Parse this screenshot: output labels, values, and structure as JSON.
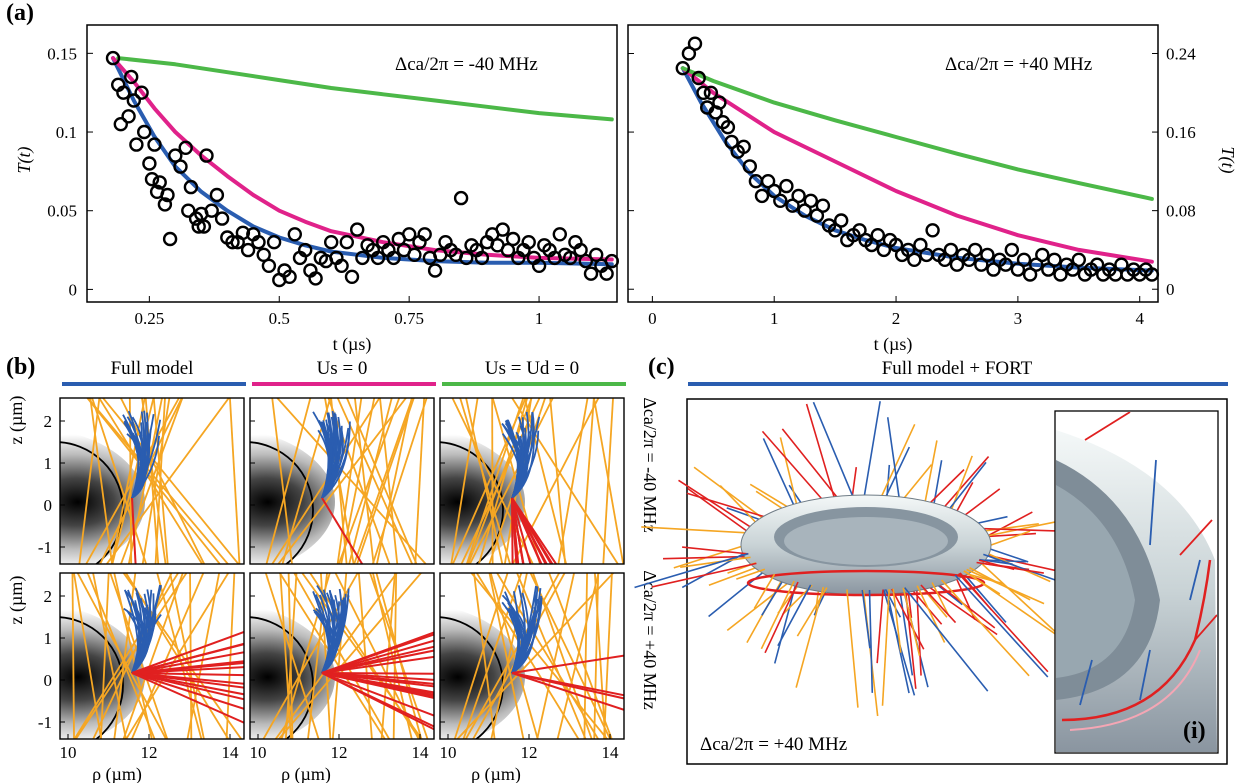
{
  "panel_labels": {
    "a": "(a)",
    "b": "(b)",
    "c": "(c)",
    "c_inset": "(i)"
  },
  "chart_data": [
    {
      "type": "scatter",
      "title": "",
      "annotation": "Δca/2π = -40 MHz",
      "xlabel": "t (µs)",
      "ylabel": "T(t)",
      "xlim": [
        0.13,
        1.15
      ],
      "ylim": [
        -0.008,
        0.168
      ],
      "xticks": [
        "0.25",
        "0.5",
        "0.75",
        "1"
      ],
      "yticks": [
        "0",
        "0.05",
        "0.1",
        "0.15"
      ],
      "markers": "open circles",
      "colors": {
        "data": "#000000",
        "blue": "#2a5db0",
        "magenta": "#e0228a",
        "green": "#4cb848"
      },
      "scatter": [
        [
          0.18,
          0.147
        ],
        [
          0.19,
          0.13
        ],
        [
          0.195,
          0.105
        ],
        [
          0.2,
          0.125
        ],
        [
          0.21,
          0.11
        ],
        [
          0.215,
          0.135
        ],
        [
          0.22,
          0.12
        ],
        [
          0.225,
          0.092
        ],
        [
          0.235,
          0.125
        ],
        [
          0.24,
          0.1
        ],
        [
          0.25,
          0.08
        ],
        [
          0.255,
          0.07
        ],
        [
          0.26,
          0.092
        ],
        [
          0.265,
          0.062
        ],
        [
          0.27,
          0.068
        ],
        [
          0.28,
          0.054
        ],
        [
          0.285,
          0.06
        ],
        [
          0.29,
          0.032
        ],
        [
          0.3,
          0.085
        ],
        [
          0.31,
          0.078
        ],
        [
          0.32,
          0.09
        ],
        [
          0.325,
          0.05
        ],
        [
          0.33,
          0.065
        ],
        [
          0.34,
          0.045
        ],
        [
          0.345,
          0.04
        ],
        [
          0.35,
          0.048
        ],
        [
          0.355,
          0.04
        ],
        [
          0.36,
          0.085
        ],
        [
          0.37,
          0.05
        ],
        [
          0.38,
          0.06
        ],
        [
          0.39,
          0.045
        ],
        [
          0.4,
          0.033
        ],
        [
          0.41,
          0.03
        ],
        [
          0.42,
          0.03
        ],
        [
          0.43,
          0.036
        ],
        [
          0.44,
          0.025
        ],
        [
          0.45,
          0.035
        ],
        [
          0.46,
          0.03
        ],
        [
          0.47,
          0.022
        ],
        [
          0.48,
          0.015
        ],
        [
          0.49,
          0.03
        ],
        [
          0.5,
          0.006
        ],
        [
          0.51,
          0.012
        ],
        [
          0.52,
          0.008
        ],
        [
          0.53,
          0.035
        ],
        [
          0.54,
          0.02
        ],
        [
          0.55,
          0.025
        ],
        [
          0.56,
          0.012
        ],
        [
          0.57,
          0.007
        ],
        [
          0.58,
          0.02
        ],
        [
          0.59,
          0.018
        ],
        [
          0.6,
          0.03
        ],
        [
          0.61,
          0.02
        ],
        [
          0.62,
          0.015
        ],
        [
          0.63,
          0.03
        ],
        [
          0.64,
          0.008
        ],
        [
          0.65,
          0.038
        ],
        [
          0.66,
          0.02
        ],
        [
          0.67,
          0.028
        ],
        [
          0.68,
          0.025
        ],
        [
          0.69,
          0.02
        ],
        [
          0.7,
          0.03
        ],
        [
          0.71,
          0.025
        ],
        [
          0.72,
          0.02
        ],
        [
          0.73,
          0.032
        ],
        [
          0.74,
          0.025
        ],
        [
          0.75,
          0.035
        ],
        [
          0.76,
          0.022
        ],
        [
          0.77,
          0.03
        ],
        [
          0.78,
          0.035
        ],
        [
          0.79,
          0.02
        ],
        [
          0.8,
          0.012
        ],
        [
          0.81,
          0.022
        ],
        [
          0.82,
          0.03
        ],
        [
          0.83,
          0.025
        ],
        [
          0.84,
          0.022
        ],
        [
          0.85,
          0.058
        ],
        [
          0.86,
          0.02
        ],
        [
          0.87,
          0.028
        ],
        [
          0.88,
          0.025
        ],
        [
          0.89,
          0.02
        ],
        [
          0.9,
          0.03
        ],
        [
          0.91,
          0.035
        ],
        [
          0.92,
          0.028
        ],
        [
          0.93,
          0.038
        ],
        [
          0.94,
          0.025
        ],
        [
          0.95,
          0.032
        ],
        [
          0.96,
          0.02
        ],
        [
          0.97,
          0.025
        ],
        [
          0.98,
          0.03
        ],
        [
          0.99,
          0.02
        ],
        [
          1.0,
          0.015
        ],
        [
          1.01,
          0.028
        ],
        [
          1.02,
          0.025
        ],
        [
          1.03,
          0.02
        ],
        [
          1.04,
          0.035
        ],
        [
          1.05,
          0.022
        ],
        [
          1.06,
          0.02
        ],
        [
          1.07,
          0.03
        ],
        [
          1.08,
          0.025
        ],
        [
          1.09,
          0.018
        ],
        [
          1.1,
          0.01
        ],
        [
          1.11,
          0.022
        ],
        [
          1.12,
          0.015
        ],
        [
          1.13,
          0.01
        ],
        [
          1.14,
          0.018
        ]
      ],
      "series": [
        {
          "color": "#2a5db0",
          "points": [
            [
              0.18,
              0.147
            ],
            [
              0.22,
              0.12
            ],
            [
              0.26,
              0.097
            ],
            [
              0.3,
              0.078
            ],
            [
              0.35,
              0.062
            ],
            [
              0.4,
              0.05
            ],
            [
              0.45,
              0.04
            ],
            [
              0.5,
              0.033
            ],
            [
              0.55,
              0.028
            ],
            [
              0.6,
              0.024
            ],
            [
              0.7,
              0.02
            ],
            [
              0.8,
              0.018
            ],
            [
              0.9,
              0.017
            ],
            [
              1.0,
              0.017
            ],
            [
              1.14,
              0.016
            ]
          ]
        },
        {
          "color": "#e0228a",
          "points": [
            [
              0.18,
              0.147
            ],
            [
              0.22,
              0.132
            ],
            [
              0.26,
              0.115
            ],
            [
              0.3,
              0.1
            ],
            [
              0.35,
              0.085
            ],
            [
              0.4,
              0.072
            ],
            [
              0.45,
              0.06
            ],
            [
              0.5,
              0.05
            ],
            [
              0.55,
              0.043
            ],
            [
              0.6,
              0.037
            ],
            [
              0.7,
              0.03
            ],
            [
              0.8,
              0.025
            ],
            [
              0.9,
              0.022
            ],
            [
              1.0,
              0.02
            ],
            [
              1.14,
              0.019
            ]
          ]
        },
        {
          "color": "#4cb848",
          "points": [
            [
              0.19,
              0.147
            ],
            [
              0.3,
              0.143
            ],
            [
              0.4,
              0.138
            ],
            [
              0.5,
              0.133
            ],
            [
              0.6,
              0.128
            ],
            [
              0.7,
              0.124
            ],
            [
              0.8,
              0.12
            ],
            [
              0.9,
              0.116
            ],
            [
              1.0,
              0.112
            ],
            [
              1.14,
              0.108
            ]
          ]
        }
      ]
    },
    {
      "type": "scatter",
      "title": "",
      "annotation": "Δca/2π = +40 MHz",
      "xlabel": "t (µs)",
      "ylabel": "T(t)",
      "xlim": [
        -0.2,
        4.15
      ],
      "ylim": [
        -0.013,
        0.269
      ],
      "xticks": [
        "0",
        "1",
        "2",
        "3",
        "4"
      ],
      "yticks": [
        "0",
        "0.08",
        "0.16",
        "0.24"
      ],
      "markers": "open circles",
      "colors": {
        "data": "#000000",
        "blue": "#2a5db0",
        "magenta": "#e0228a",
        "green": "#4cb848"
      },
      "scatter": [
        [
          0.25,
          0.225
        ],
        [
          0.3,
          0.24
        ],
        [
          0.35,
          0.25
        ],
        [
          0.38,
          0.215
        ],
        [
          0.42,
          0.2
        ],
        [
          0.45,
          0.185
        ],
        [
          0.48,
          0.2
        ],
        [
          0.52,
          0.18
        ],
        [
          0.55,
          0.19
        ],
        [
          0.58,
          0.17
        ],
        [
          0.62,
          0.165
        ],
        [
          0.65,
          0.15
        ],
        [
          0.7,
          0.14
        ],
        [
          0.75,
          0.145
        ],
        [
          0.8,
          0.125
        ],
        [
          0.85,
          0.11
        ],
        [
          0.9,
          0.095
        ],
        [
          0.95,
          0.11
        ],
        [
          1.0,
          0.1
        ],
        [
          1.05,
          0.09
        ],
        [
          1.1,
          0.105
        ],
        [
          1.15,
          0.085
        ],
        [
          1.2,
          0.095
        ],
        [
          1.25,
          0.08
        ],
        [
          1.3,
          0.09
        ],
        [
          1.35,
          0.075
        ],
        [
          1.4,
          0.085
        ],
        [
          1.45,
          0.065
        ],
        [
          1.5,
          0.06
        ],
        [
          1.55,
          0.07
        ],
        [
          1.6,
          0.05
        ],
        [
          1.65,
          0.055
        ],
        [
          1.7,
          0.06
        ],
        [
          1.75,
          0.05
        ],
        [
          1.8,
          0.045
        ],
        [
          1.85,
          0.055
        ],
        [
          1.9,
          0.04
        ],
        [
          1.95,
          0.05
        ],
        [
          2.0,
          0.045
        ],
        [
          2.05,
          0.035
        ],
        [
          2.1,
          0.04
        ],
        [
          2.15,
          0.03
        ],
        [
          2.2,
          0.045
        ],
        [
          2.25,
          0.035
        ],
        [
          2.3,
          0.06
        ],
        [
          2.35,
          0.035
        ],
        [
          2.4,
          0.03
        ],
        [
          2.45,
          0.04
        ],
        [
          2.5,
          0.025
        ],
        [
          2.55,
          0.035
        ],
        [
          2.6,
          0.03
        ],
        [
          2.65,
          0.04
        ],
        [
          2.7,
          0.025
        ],
        [
          2.75,
          0.035
        ],
        [
          2.8,
          0.02
        ],
        [
          2.85,
          0.03
        ],
        [
          2.9,
          0.025
        ],
        [
          2.95,
          0.04
        ],
        [
          3.0,
          0.02
        ],
        [
          3.05,
          0.03
        ],
        [
          3.1,
          0.015
        ],
        [
          3.15,
          0.025
        ],
        [
          3.2,
          0.035
        ],
        [
          3.25,
          0.02
        ],
        [
          3.3,
          0.03
        ],
        [
          3.35,
          0.015
        ],
        [
          3.4,
          0.025
        ],
        [
          3.45,
          0.02
        ],
        [
          3.5,
          0.03
        ],
        [
          3.55,
          0.015
        ],
        [
          3.6,
          0.02
        ],
        [
          3.65,
          0.025
        ],
        [
          3.7,
          0.015
        ],
        [
          3.75,
          0.02
        ],
        [
          3.8,
          0.015
        ],
        [
          3.85,
          0.025
        ],
        [
          3.9,
          0.015
        ],
        [
          3.95,
          0.02
        ],
        [
          4.0,
          0.015
        ],
        [
          4.05,
          0.02
        ],
        [
          4.1,
          0.015
        ]
      ],
      "series": [
        {
          "color": "#2a5db0",
          "points": [
            [
              0.25,
              0.225
            ],
            [
              0.4,
              0.19
            ],
            [
              0.6,
              0.15
            ],
            [
              0.8,
              0.118
            ],
            [
              1.0,
              0.095
            ],
            [
              1.25,
              0.075
            ],
            [
              1.5,
              0.06
            ],
            [
              1.75,
              0.05
            ],
            [
              2.0,
              0.042
            ],
            [
              2.5,
              0.032
            ],
            [
              3.0,
              0.026
            ],
            [
              3.5,
              0.022
            ],
            [
              4.1,
              0.019
            ]
          ]
        },
        {
          "color": "#e0228a",
          "points": [
            [
              0.25,
              0.225
            ],
            [
              0.5,
              0.2
            ],
            [
              0.75,
              0.18
            ],
            [
              1.0,
              0.16
            ],
            [
              1.5,
              0.13
            ],
            [
              2.0,
              0.1
            ],
            [
              2.5,
              0.075
            ],
            [
              3.0,
              0.055
            ],
            [
              3.5,
              0.04
            ],
            [
              4.1,
              0.028
            ]
          ]
        },
        {
          "color": "#4cb848",
          "points": [
            [
              0.25,
              0.225
            ],
            [
              0.5,
              0.212
            ],
            [
              1.0,
              0.19
            ],
            [
              1.5,
              0.172
            ],
            [
              2.0,
              0.155
            ],
            [
              2.5,
              0.138
            ],
            [
              3.0,
              0.122
            ],
            [
              3.5,
              0.108
            ],
            [
              4.1,
              0.092
            ]
          ]
        }
      ]
    }
  ],
  "panel_b": {
    "columns": [
      "Full model",
      "Us = 0",
      "Us = Ud = 0"
    ],
    "column_colors": [
      "#2a5db0",
      "#e0228a",
      "#4cb848"
    ],
    "row_labels": [
      "Δca/2π = -40 MHz",
      "Δca/2π = +40 MHz"
    ],
    "xlabel": "ρ (µm)",
    "ylabel": "z (µm)",
    "xticks": [
      "10",
      "12",
      "14"
    ],
    "yticks": [
      "2",
      "1",
      "0",
      "-1"
    ],
    "trajectory_colors": {
      "blue": "#2a5db0",
      "orange": "#f5a623",
      "red": "#e02020"
    }
  },
  "panel_c": {
    "header": "Full model + FORT",
    "header_color": "#2a5db0",
    "annotation": "Δca/2π = +40 MHz"
  }
}
